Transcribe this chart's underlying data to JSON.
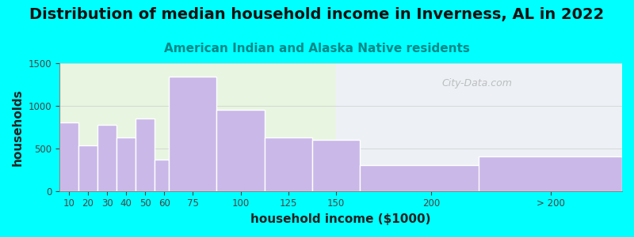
{
  "title": "Distribution of median household income in Inverness, AL in 2022",
  "subtitle": "American Indian and Alaska Native residents",
  "xlabel": "household income ($1000)",
  "ylabel": "households",
  "bar_lefts": [
    5,
    15,
    25,
    35,
    45,
    55,
    62.5,
    87.5,
    112.5,
    137.5,
    162.5,
    225
  ],
  "bar_widths": [
    10,
    10,
    10,
    10,
    10,
    7.5,
    25,
    25,
    25,
    25,
    75,
    75
  ],
  "bar_heights": [
    800,
    540,
    780,
    630,
    850,
    370,
    1340,
    950,
    630,
    600,
    300,
    410
  ],
  "xtick_positions": [
    10,
    20,
    30,
    40,
    50,
    60,
    75,
    100,
    125,
    150,
    200,
    262.5
  ],
  "xtick_labels": [
    "10",
    "20",
    "30",
    "40",
    "50",
    "60",
    "75",
    "100",
    "125",
    "150",
    "200",
    "> 200"
  ],
  "bar_color": "#c9b8e8",
  "bar_edge_color": "#ffffff",
  "background_outer": "#00ffff",
  "background_inner_left": "#e8f5e0",
  "background_inner_right": "#f0f0ff",
  "ylim": [
    0,
    1500
  ],
  "xlim": [
    5,
    300
  ],
  "yticks": [
    0,
    500,
    1000,
    1500
  ],
  "title_fontsize": 14,
  "subtitle_fontsize": 11,
  "subtitle_color": "#008888",
  "axis_label_fontsize": 11,
  "watermark_text": "City-Data.com",
  "watermark_color": "#b0b0b0"
}
